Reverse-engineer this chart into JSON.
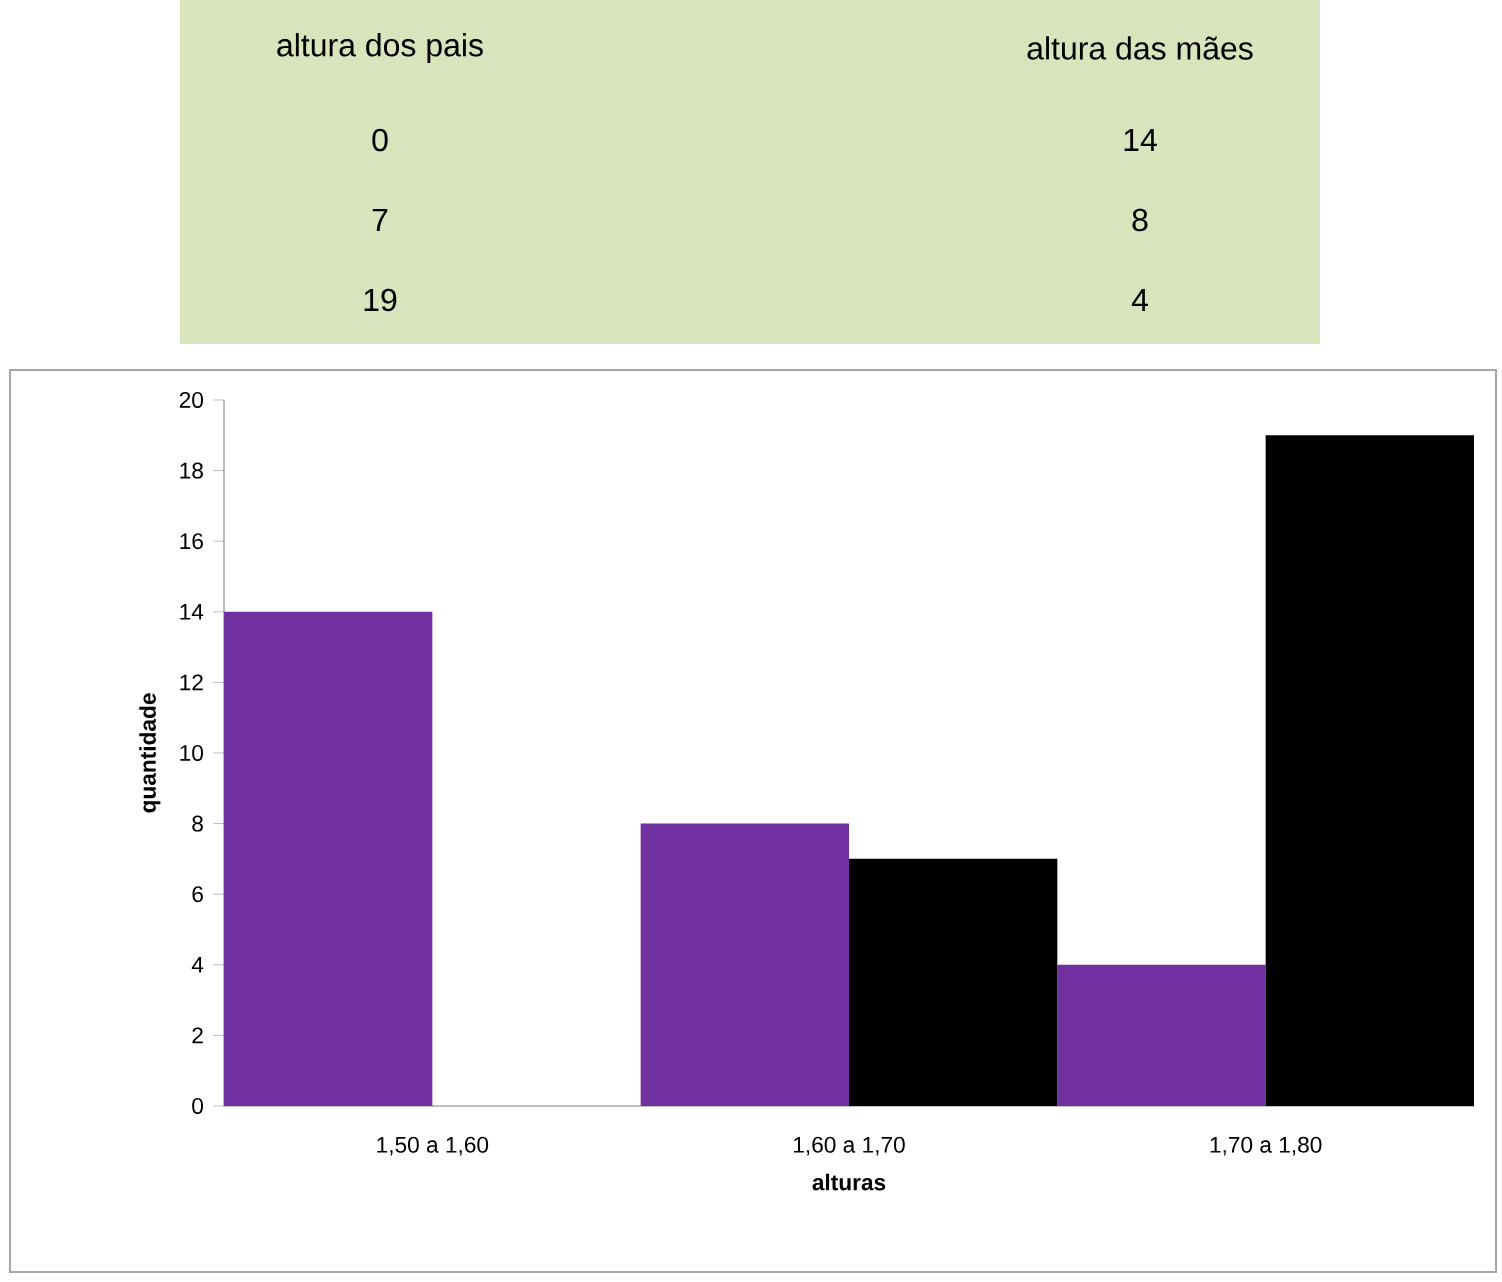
{
  "chart_data": [
    {
      "type": "other",
      "annotations": [
        "altura dos pais",
        "altura das mães",
        "0",
        "14",
        "7",
        "8",
        "19",
        "4"
      ]
    },
    {
      "type": "bar",
      "xlabel": "alturas",
      "ylabel": "quantidade",
      "categories": [
        "1,50 a 1,60",
        "1,60 a 1,70",
        "1,70 a 1,80"
      ],
      "series": [
        {
          "color": "#7030a0",
          "values": [
            14,
            8,
            4
          ]
        },
        {
          "color": "#000000",
          "values": [
            0,
            7,
            19
          ]
        }
      ],
      "ylim": [
        0,
        20
      ],
      "yticks": [
        0,
        2,
        4,
        6,
        8,
        10,
        12,
        14,
        16,
        18,
        20
      ]
    }
  ]
}
